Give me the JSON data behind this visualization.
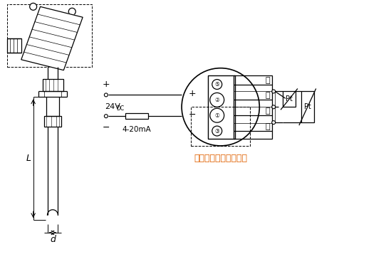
{
  "bg_color": "#ffffff",
  "line_color": "#000000",
  "annotation_color": "#e06000",
  "fig_width": 5.42,
  "fig_height": 3.78,
  "subtitle": "热电阻：三线或四线制",
  "label_plus": "+",
  "label_minus": "-",
  "label_24vdc": "24V",
  "label_dc_sub": "DC",
  "label_4_20ma": "4-20mA",
  "label_L": "L",
  "label_d": "d",
  "pin_labels_right": [
    "白",
    "白",
    "红",
    "红"
  ],
  "pin_numbers": [
    "⑤",
    "②",
    "①",
    "③"
  ],
  "pt_label": "Pt"
}
